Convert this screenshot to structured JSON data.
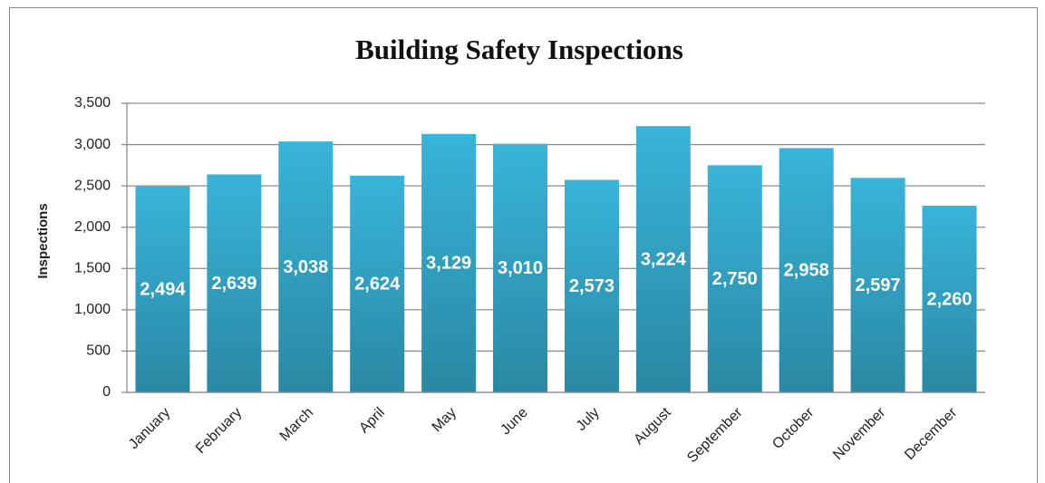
{
  "chart_data": {
    "type": "bar",
    "title": "Building Safety Inspections",
    "y_label": "Inspections",
    "categories": [
      "January",
      "February",
      "March",
      "April",
      "May",
      "June",
      "July",
      "August",
      "September",
      "October",
      "November",
      "December"
    ],
    "values": [
      2494,
      2639,
      3038,
      2624,
      3129,
      3010,
      2573,
      3224,
      2750,
      2958,
      2597,
      2260
    ],
    "value_labels": [
      "2,494",
      "2,639",
      "3,038",
      "2,624",
      "3,129",
      "3,010",
      "2,573",
      "3,224",
      "2,750",
      "2,958",
      "2,597",
      "2,260"
    ],
    "color": "#38b4da",
    "ylim": [
      0,
      3500
    ],
    "yticks": [
      0,
      500,
      {
        "value": 1000,
        "label": "1,000"
      },
      {
        "value": 1500,
        "label": "1,500"
      },
      {
        "value": 2000,
        "label": "2,000"
      },
      {
        "value": 2500,
        "label": "2,500"
      },
      {
        "value": 3000,
        "label": "3,000"
      },
      {
        "value": 3500,
        "label": "3,500"
      }
    ],
    "grid": true
  }
}
